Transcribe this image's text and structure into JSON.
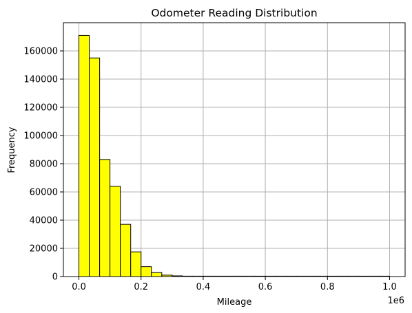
{
  "chart_data": {
    "type": "bar",
    "title": "Odometer Reading Distribution",
    "xlabel": "Mileage",
    "ylabel": "Frequency",
    "x_offset_label": "1e6",
    "xlim": [
      -0.05,
      1.05
    ],
    "ylim": [
      0,
      180000
    ],
    "grid": true,
    "bar_fill": "#ffff00",
    "bar_edge": "#000000",
    "grid_color": "#b0b0b0",
    "x_ticks": [
      {
        "value": 0.0,
        "label": "0.0"
      },
      {
        "value": 0.2,
        "label": "0.2"
      },
      {
        "value": 0.4,
        "label": "0.4"
      },
      {
        "value": 0.6,
        "label": "0.6"
      },
      {
        "value": 0.8,
        "label": "0.8"
      },
      {
        "value": 1.0,
        "label": "1.0"
      }
    ],
    "y_ticks": [
      {
        "value": 0,
        "label": "0"
      },
      {
        "value": 20000,
        "label": "20000"
      },
      {
        "value": 40000,
        "label": "40000"
      },
      {
        "value": 60000,
        "label": "60000"
      },
      {
        "value": 80000,
        "label": "80000"
      },
      {
        "value": 100000,
        "label": "100000"
      },
      {
        "value": 120000,
        "label": "120000"
      },
      {
        "value": 140000,
        "label": "140000"
      },
      {
        "value": 160000,
        "label": "160000"
      }
    ],
    "bins": [
      {
        "start": 0.0,
        "end": 0.0333,
        "value": 171000
      },
      {
        "start": 0.0333,
        "end": 0.0667,
        "value": 155000
      },
      {
        "start": 0.0667,
        "end": 0.1,
        "value": 83000
      },
      {
        "start": 0.1,
        "end": 0.1333,
        "value": 64000
      },
      {
        "start": 0.1333,
        "end": 0.1667,
        "value": 37000
      },
      {
        "start": 0.1667,
        "end": 0.2,
        "value": 17500
      },
      {
        "start": 0.2,
        "end": 0.2333,
        "value": 7000
      },
      {
        "start": 0.2333,
        "end": 0.2667,
        "value": 2800
      },
      {
        "start": 0.2667,
        "end": 0.3,
        "value": 1000
      },
      {
        "start": 0.3,
        "end": 0.3333,
        "value": 500
      },
      {
        "start": 0.3333,
        "end": 0.3667,
        "value": 300
      },
      {
        "start": 0.3667,
        "end": 0.4,
        "value": 100
      },
      {
        "start": 0.4,
        "end": 0.4333,
        "value": 50
      },
      {
        "start": 0.4333,
        "end": 0.4667,
        "value": 30
      },
      {
        "start": 0.4667,
        "end": 0.5,
        "value": 20
      },
      {
        "start": 0.5,
        "end": 0.5333,
        "value": 15
      },
      {
        "start": 0.5333,
        "end": 0.5667,
        "value": 10
      },
      {
        "start": 0.5667,
        "end": 0.6,
        "value": 10
      },
      {
        "start": 0.6,
        "end": 0.6333,
        "value": 10
      },
      {
        "start": 0.6333,
        "end": 0.6667,
        "value": 10
      },
      {
        "start": 0.6667,
        "end": 0.7,
        "value": 10
      },
      {
        "start": 0.7,
        "end": 0.7333,
        "value": 10
      },
      {
        "start": 0.7333,
        "end": 0.7667,
        "value": 10
      },
      {
        "start": 0.7667,
        "end": 0.8,
        "value": 10
      },
      {
        "start": 0.8,
        "end": 0.8333,
        "value": 10
      },
      {
        "start": 0.8333,
        "end": 0.8667,
        "value": 10
      },
      {
        "start": 0.8667,
        "end": 0.9,
        "value": 10
      },
      {
        "start": 0.9,
        "end": 0.9333,
        "value": 10
      },
      {
        "start": 0.9333,
        "end": 0.9667,
        "value": 10
      },
      {
        "start": 0.9667,
        "end": 1.0,
        "value": 30
      }
    ]
  }
}
